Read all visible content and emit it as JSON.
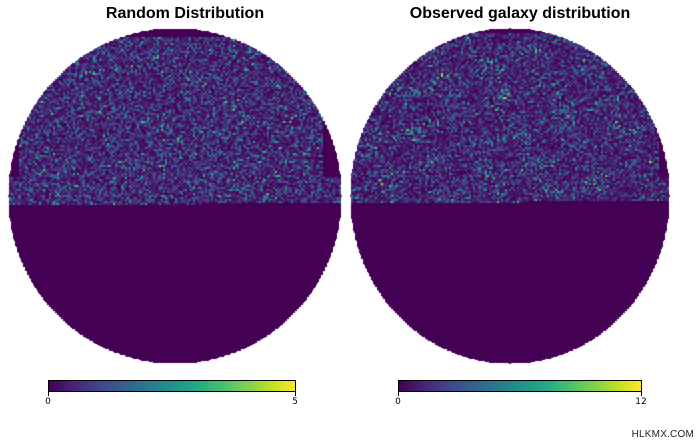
{
  "chart_data": [
    {
      "type": "heatmap",
      "projection": "orthographic hemisphere",
      "title": "Random Distribution",
      "colormap": "viridis",
      "colorbar": {
        "min": 0,
        "max": 5,
        "tick_labels": [
          "0",
          "5"
        ],
        "position": "bottom"
      },
      "sky_coverage": "upper half of disk filled with counts; lower half empty (value 0)",
      "typical_values": {
        "empty_region": 0,
        "filled_region_mean": 0.8
      }
    },
    {
      "type": "heatmap",
      "projection": "orthographic hemisphere",
      "title": "Observed galaxy distribution",
      "colormap": "viridis",
      "colorbar": {
        "min": 0,
        "max": 12,
        "tick_labels": [
          "0",
          "12"
        ],
        "position": "bottom"
      },
      "sky_coverage": "upper half of disk filled with counts; lower half empty (value 0)",
      "typical_values": {
        "empty_region": 0,
        "filled_region_mean": 1.5
      }
    }
  ],
  "colors": {
    "background_disk": "#440154",
    "page_background": "#ffffff"
  },
  "watermark": "HLKMX.COM"
}
